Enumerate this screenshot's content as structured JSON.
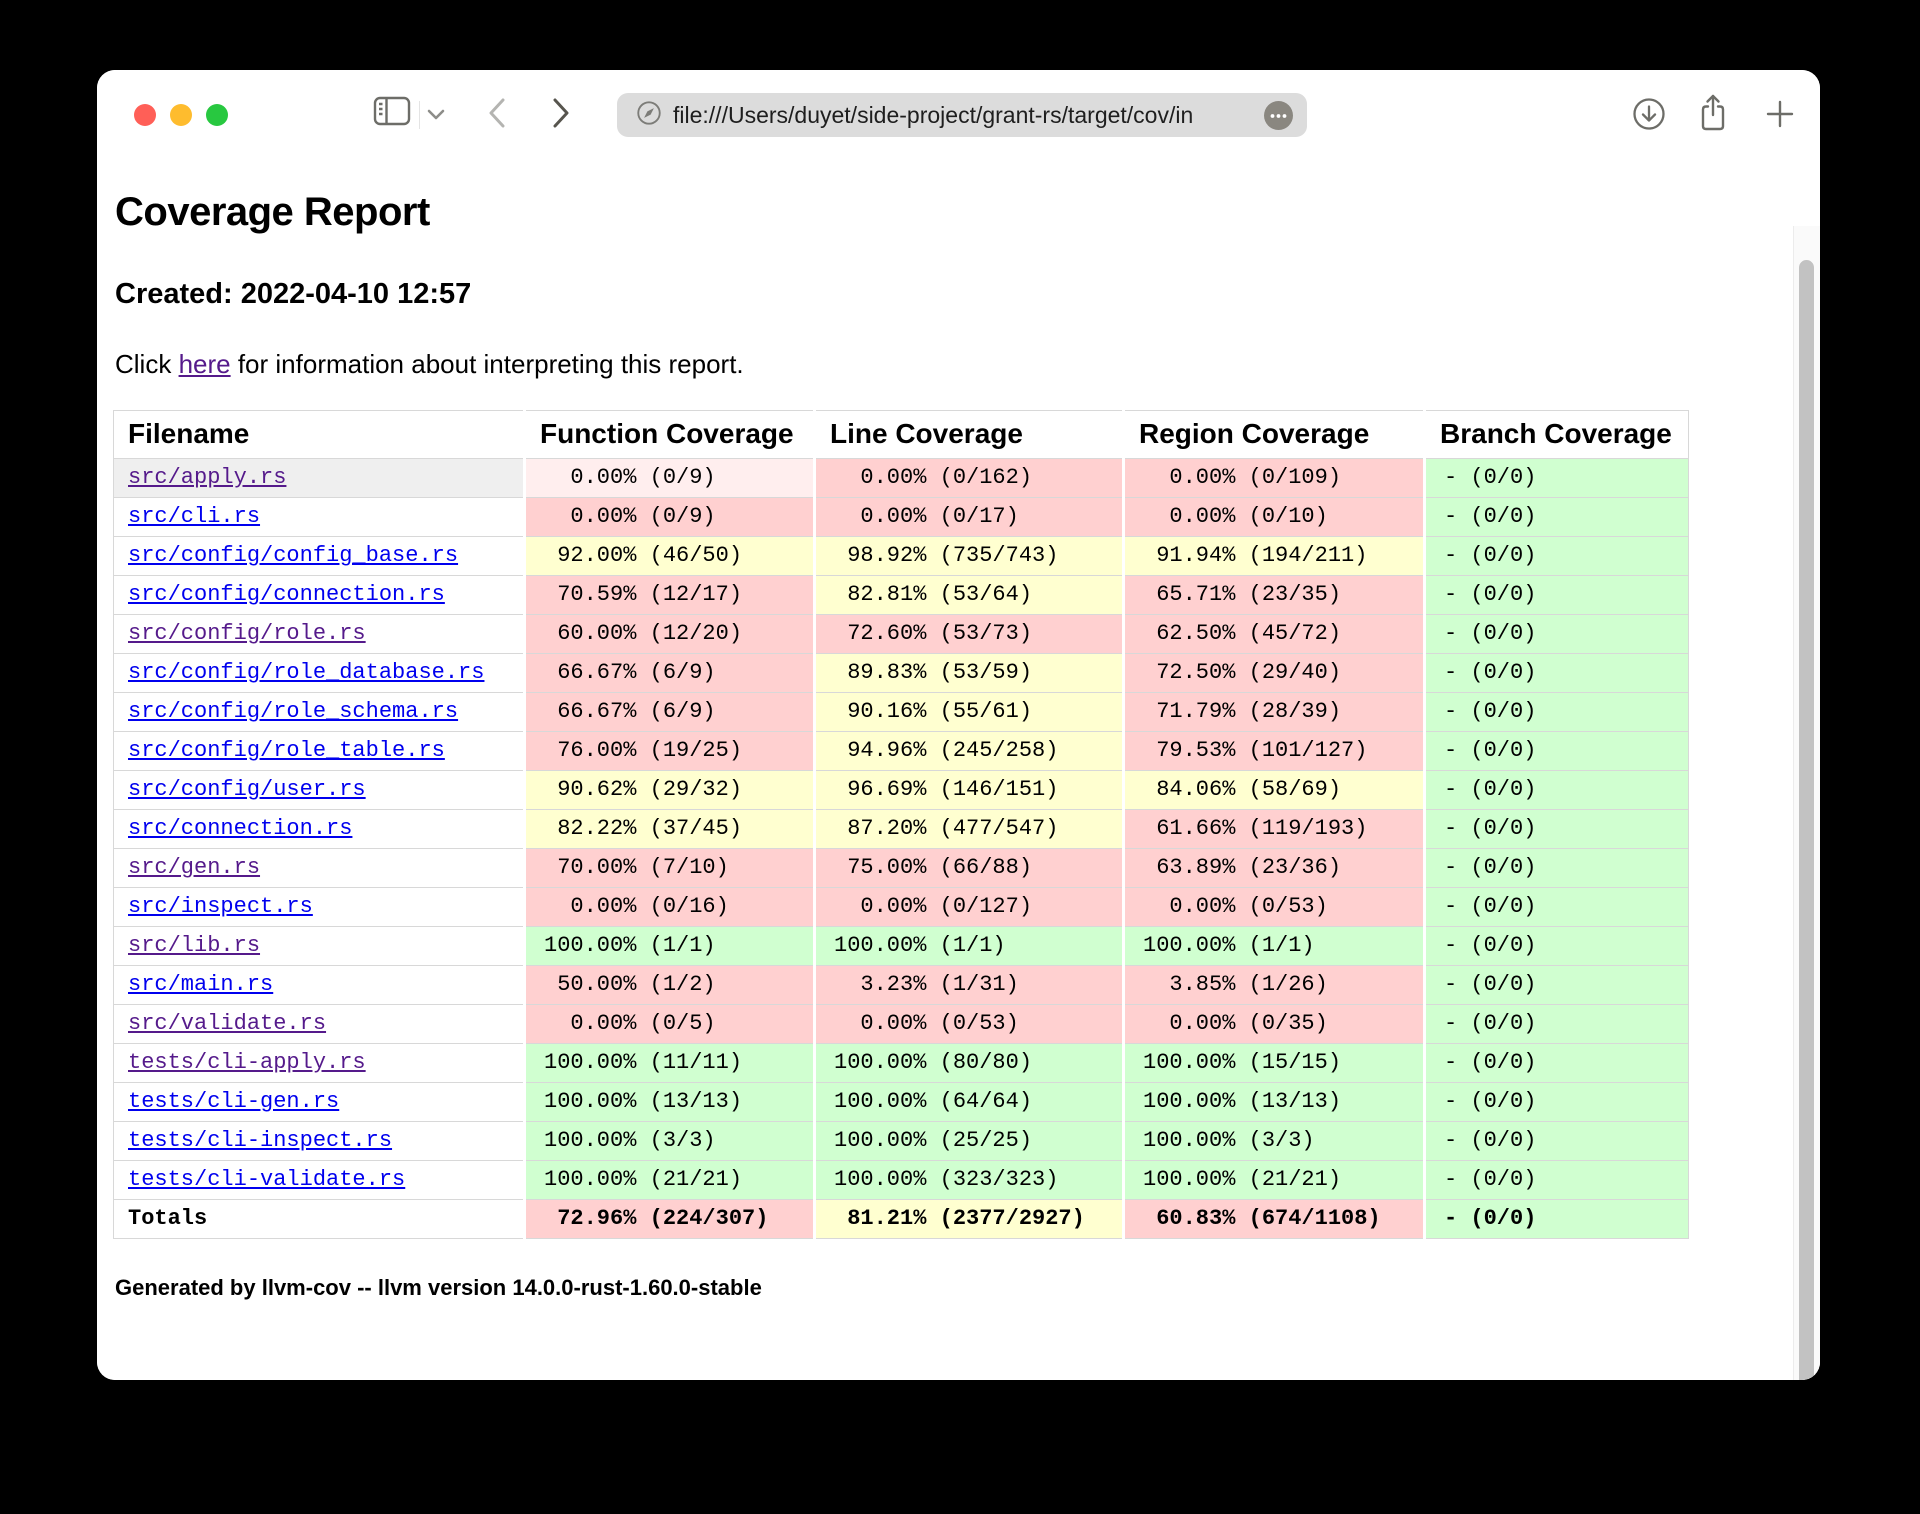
{
  "browser": {
    "url": "file:///Users/duyet/side-project/grant-rs/target/cov/in",
    "traffic_lights": {
      "close": "#ff5f57",
      "minimize": "#febc2e",
      "zoom": "#28c840"
    },
    "icons": [
      "sidebar-icon",
      "chevron-down-icon",
      "back-icon",
      "forward-icon",
      "compass-icon",
      "ellipsis-icon",
      "download-icon",
      "share-icon",
      "new-tab-icon"
    ]
  },
  "page": {
    "title": "Coverage Report",
    "created": "Created: 2022-04-10 12:57",
    "info": {
      "prefix": "Click ",
      "link": "here",
      "suffix": " for information about interpreting this report."
    },
    "footer": "Generated by llvm-cov -- llvm version 14.0.0-rust-1.60.0-stable"
  },
  "colors": {
    "red": "#ffd0d0",
    "yellow": "#ffffd0",
    "green": "#d0ffd0",
    "red_hover": "#ffeeee",
    "row_hover": "#efefef",
    "link": "#0000ee",
    "link_visited": "#551a8b"
  },
  "table": {
    "headers": [
      "Filename",
      "Function Coverage",
      "Line Coverage",
      "Region Coverage",
      "Branch Coverage"
    ],
    "rows": [
      {
        "file": "src/apply.rs",
        "visited": true,
        "hovered": true,
        "cells": [
          {
            "text": "  0.00% (0/9)",
            "color": "red-hover"
          },
          {
            "text": "  0.00% (0/162)",
            "color": "red"
          },
          {
            "text": "  0.00% (0/109)",
            "color": "red"
          },
          {
            "text": "- (0/0)",
            "color": "green"
          }
        ]
      },
      {
        "file": "src/cli.rs",
        "visited": false,
        "hovered": false,
        "cells": [
          {
            "text": "  0.00% (0/9)",
            "color": "red"
          },
          {
            "text": "  0.00% (0/17)",
            "color": "red"
          },
          {
            "text": "  0.00% (0/10)",
            "color": "red"
          },
          {
            "text": "- (0/0)",
            "color": "green"
          }
        ]
      },
      {
        "file": "src/config/config_base.rs",
        "visited": false,
        "hovered": false,
        "cells": [
          {
            "text": " 92.00% (46/50)",
            "color": "yellow"
          },
          {
            "text": " 98.92% (735/743)",
            "color": "yellow"
          },
          {
            "text": " 91.94% (194/211)",
            "color": "yellow"
          },
          {
            "text": "- (0/0)",
            "color": "green"
          }
        ]
      },
      {
        "file": "src/config/connection.rs",
        "visited": false,
        "hovered": false,
        "cells": [
          {
            "text": " 70.59% (12/17)",
            "color": "red"
          },
          {
            "text": " 82.81% (53/64)",
            "color": "yellow"
          },
          {
            "text": " 65.71% (23/35)",
            "color": "red"
          },
          {
            "text": "- (0/0)",
            "color": "green"
          }
        ]
      },
      {
        "file": "src/config/role.rs",
        "visited": true,
        "hovered": false,
        "cells": [
          {
            "text": " 60.00% (12/20)",
            "color": "red"
          },
          {
            "text": " 72.60% (53/73)",
            "color": "red"
          },
          {
            "text": " 62.50% (45/72)",
            "color": "red"
          },
          {
            "text": "- (0/0)",
            "color": "green"
          }
        ]
      },
      {
        "file": "src/config/role_database.rs",
        "visited": false,
        "hovered": false,
        "cells": [
          {
            "text": " 66.67% (6/9)",
            "color": "red"
          },
          {
            "text": " 89.83% (53/59)",
            "color": "yellow"
          },
          {
            "text": " 72.50% (29/40)",
            "color": "red"
          },
          {
            "text": "- (0/0)",
            "color": "green"
          }
        ]
      },
      {
        "file": "src/config/role_schema.rs",
        "visited": false,
        "hovered": false,
        "cells": [
          {
            "text": " 66.67% (6/9)",
            "color": "red"
          },
          {
            "text": " 90.16% (55/61)",
            "color": "yellow"
          },
          {
            "text": " 71.79% (28/39)",
            "color": "red"
          },
          {
            "text": "- (0/0)",
            "color": "green"
          }
        ]
      },
      {
        "file": "src/config/role_table.rs",
        "visited": false,
        "hovered": false,
        "cells": [
          {
            "text": " 76.00% (19/25)",
            "color": "red"
          },
          {
            "text": " 94.96% (245/258)",
            "color": "yellow"
          },
          {
            "text": " 79.53% (101/127)",
            "color": "red"
          },
          {
            "text": "- (0/0)",
            "color": "green"
          }
        ]
      },
      {
        "file": "src/config/user.rs",
        "visited": false,
        "hovered": false,
        "cells": [
          {
            "text": " 90.62% (29/32)",
            "color": "yellow"
          },
          {
            "text": " 96.69% (146/151)",
            "color": "yellow"
          },
          {
            "text": " 84.06% (58/69)",
            "color": "yellow"
          },
          {
            "text": "- (0/0)",
            "color": "green"
          }
        ]
      },
      {
        "file": "src/connection.rs",
        "visited": false,
        "hovered": false,
        "cells": [
          {
            "text": " 82.22% (37/45)",
            "color": "yellow"
          },
          {
            "text": " 87.20% (477/547)",
            "color": "yellow"
          },
          {
            "text": " 61.66% (119/193)",
            "color": "red"
          },
          {
            "text": "- (0/0)",
            "color": "green"
          }
        ]
      },
      {
        "file": "src/gen.rs",
        "visited": true,
        "hovered": false,
        "cells": [
          {
            "text": " 70.00% (7/10)",
            "color": "red"
          },
          {
            "text": " 75.00% (66/88)",
            "color": "red"
          },
          {
            "text": " 63.89% (23/36)",
            "color": "red"
          },
          {
            "text": "- (0/0)",
            "color": "green"
          }
        ]
      },
      {
        "file": "src/inspect.rs",
        "visited": false,
        "hovered": false,
        "cells": [
          {
            "text": "  0.00% (0/16)",
            "color": "red"
          },
          {
            "text": "  0.00% (0/127)",
            "color": "red"
          },
          {
            "text": "  0.00% (0/53)",
            "color": "red"
          },
          {
            "text": "- (0/0)",
            "color": "green"
          }
        ]
      },
      {
        "file": "src/lib.rs",
        "visited": true,
        "hovered": false,
        "cells": [
          {
            "text": "100.00% (1/1)",
            "color": "green"
          },
          {
            "text": "100.00% (1/1)",
            "color": "green"
          },
          {
            "text": "100.00% (1/1)",
            "color": "green"
          },
          {
            "text": "- (0/0)",
            "color": "green"
          }
        ]
      },
      {
        "file": "src/main.rs",
        "visited": false,
        "hovered": false,
        "cells": [
          {
            "text": " 50.00% (1/2)",
            "color": "red"
          },
          {
            "text": "  3.23% (1/31)",
            "color": "red"
          },
          {
            "text": "  3.85% (1/26)",
            "color": "red"
          },
          {
            "text": "- (0/0)",
            "color": "green"
          }
        ]
      },
      {
        "file": "src/validate.rs",
        "visited": true,
        "hovered": false,
        "cells": [
          {
            "text": "  0.00% (0/5)",
            "color": "red"
          },
          {
            "text": "  0.00% (0/53)",
            "color": "red"
          },
          {
            "text": "  0.00% (0/35)",
            "color": "red"
          },
          {
            "text": "- (0/0)",
            "color": "green"
          }
        ]
      },
      {
        "file": "tests/cli-apply.rs",
        "visited": true,
        "hovered": false,
        "cells": [
          {
            "text": "100.00% (11/11)",
            "color": "green"
          },
          {
            "text": "100.00% (80/80)",
            "color": "green"
          },
          {
            "text": "100.00% (15/15)",
            "color": "green"
          },
          {
            "text": "- (0/0)",
            "color": "green"
          }
        ]
      },
      {
        "file": "tests/cli-gen.rs",
        "visited": false,
        "hovered": false,
        "cells": [
          {
            "text": "100.00% (13/13)",
            "color": "green"
          },
          {
            "text": "100.00% (64/64)",
            "color": "green"
          },
          {
            "text": "100.00% (13/13)",
            "color": "green"
          },
          {
            "text": "- (0/0)",
            "color": "green"
          }
        ]
      },
      {
        "file": "tests/cli-inspect.rs",
        "visited": false,
        "hovered": false,
        "cells": [
          {
            "text": "100.00% (3/3)",
            "color": "green"
          },
          {
            "text": "100.00% (25/25)",
            "color": "green"
          },
          {
            "text": "100.00% (3/3)",
            "color": "green"
          },
          {
            "text": "- (0/0)",
            "color": "green"
          }
        ]
      },
      {
        "file": "tests/cli-validate.rs",
        "visited": false,
        "hovered": false,
        "cells": [
          {
            "text": "100.00% (21/21)",
            "color": "green"
          },
          {
            "text": "100.00% (323/323)",
            "color": "green"
          },
          {
            "text": "100.00% (21/21)",
            "color": "green"
          },
          {
            "text": "- (0/0)",
            "color": "green"
          }
        ]
      }
    ],
    "totals": {
      "label": "Totals",
      "cells": [
        {
          "text": " 72.96% (224/307)",
          "color": "red"
        },
        {
          "text": " 81.21% (2377/2927)",
          "color": "yellow"
        },
        {
          "text": " 60.83% (674/1108)",
          "color": "red"
        },
        {
          "text": "- (0/0)",
          "color": "green"
        }
      ]
    }
  }
}
